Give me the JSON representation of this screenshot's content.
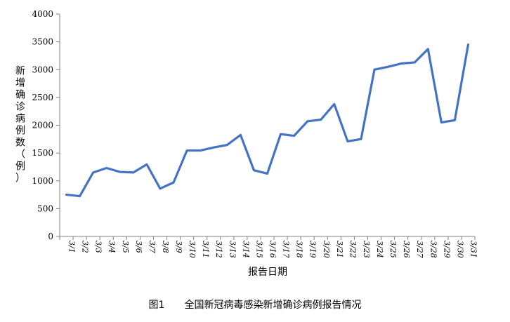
{
  "caption": {
    "figure_no": "图1",
    "title": "全国新冠病毒感染新增确诊病例报告情况"
  },
  "chart_data": {
    "type": "line",
    "title": "",
    "xlabel": "报告日期",
    "ylabel": "新增确诊病例数（例）",
    "ylim": [
      0,
      4000
    ],
    "yticks": [
      0,
      500,
      1000,
      1500,
      2000,
      2500,
      3000,
      3500,
      4000
    ],
    "grid": false,
    "line_color": "#4472C4",
    "categories": [
      "3/1",
      "3/2",
      "3/3",
      "3/4",
      "3/5",
      "3/6",
      "3/7",
      "3/8",
      "3/9",
      "3/10",
      "3/11",
      "3/12",
      "3/13",
      "3/14",
      "3/15",
      "3/16",
      "3/17",
      "3/18",
      "3/19",
      "3/20",
      "3/21",
      "3/22",
      "3/23",
      "3/24",
      "3/25",
      "3/26",
      "3/27",
      "3/28",
      "3/29",
      "3/30",
      "3/31"
    ],
    "series": [
      {
        "values": [
          750,
          725,
          1150,
          1230,
          1160,
          1150,
          1295,
          860,
          970,
          1545,
          1545,
          1600,
          1645,
          1825,
          1190,
          1130,
          1840,
          1810,
          2070,
          2100,
          2380,
          1710,
          1750,
          3000,
          3050,
          3110,
          3130,
          3370,
          2050,
          2090,
          3450
        ]
      }
    ]
  }
}
